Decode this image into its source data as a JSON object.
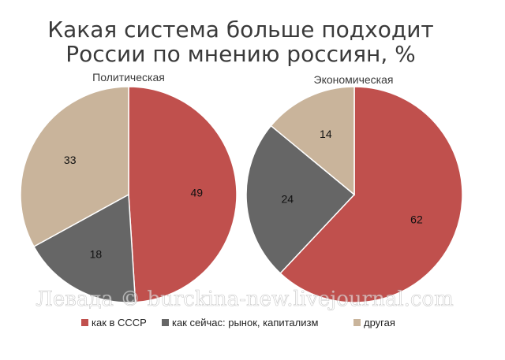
{
  "title_line1": "Какая система больше подходит",
  "title_line2": "России по мнению россиян, %",
  "watermark": "Левада © burckina-new.livejournal.com",
  "colors": {
    "ussr": "#c0504d",
    "now": "#666666",
    "other": "#c9b49b"
  },
  "chart_data": [
    {
      "type": "pie",
      "title": "Политическая",
      "categories": [
        "как в СССР",
        "как сейчас: рынок, капитализм",
        "другая"
      ],
      "values": [
        49,
        18,
        33
      ],
      "legend_position": "bottom"
    },
    {
      "type": "pie",
      "title": "Экономическая",
      "categories": [
        "как в СССР",
        "как сейчас: рынок, капитализм",
        "другая"
      ],
      "values": [
        62,
        24,
        14
      ],
      "legend_position": "bottom"
    }
  ],
  "legend": [
    {
      "label": "как в СССР",
      "color_key": "ussr"
    },
    {
      "label": "как сейчас: рынок, капитализм",
      "color_key": "now"
    },
    {
      "label": "другая",
      "color_key": "other"
    }
  ]
}
